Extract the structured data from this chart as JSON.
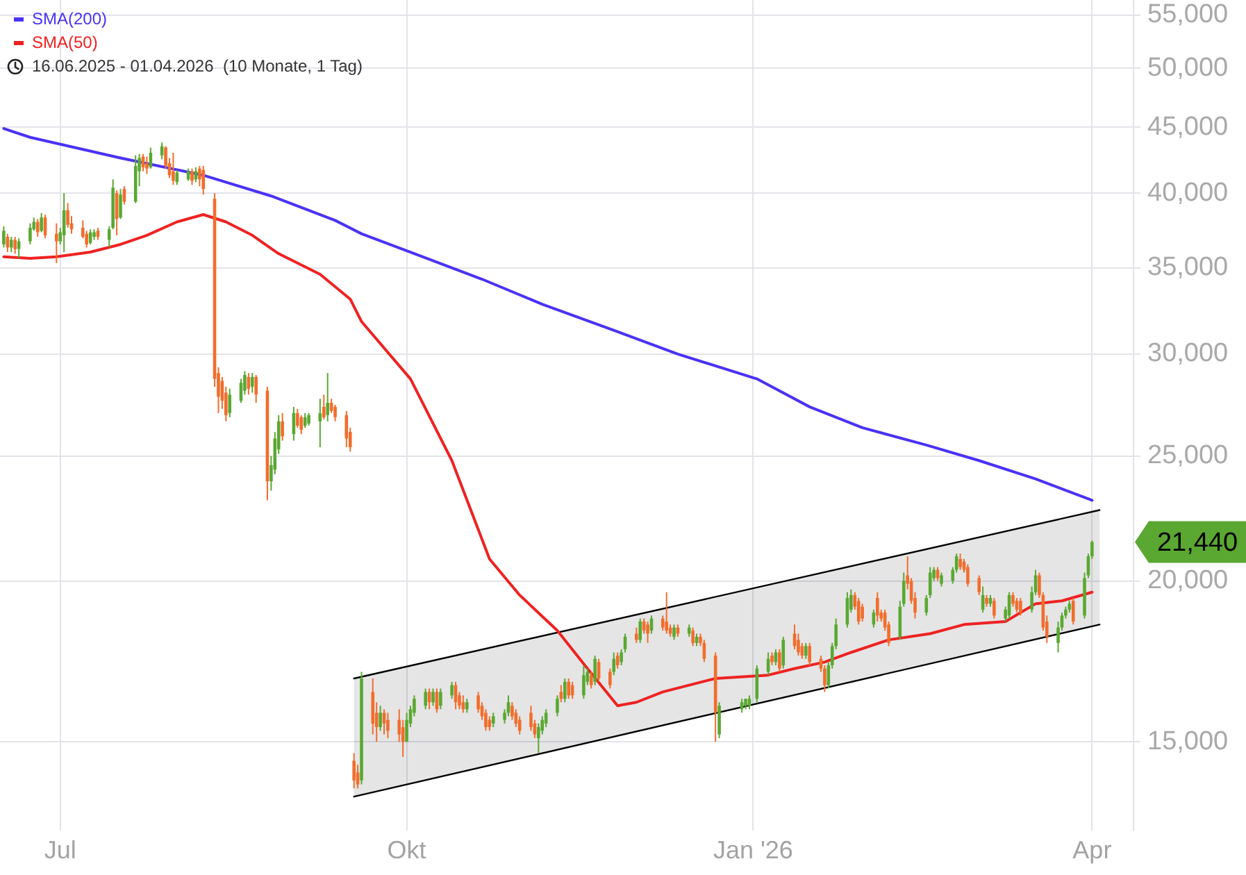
{
  "chart_data": {
    "type": "candlestick",
    "x": [
      "2025-06-16",
      "2025-06-17",
      "2025-06-18",
      "2025-06-19",
      "2025-06-20",
      "2025-06-23",
      "2025-06-24",
      "2025-06-25",
      "2025-06-26",
      "2025-06-27",
      "2025-06-30",
      "2025-07-01",
      "2025-07-02",
      "2025-07-03",
      "2025-07-04",
      "2025-07-07",
      "2025-07-08",
      "2025-07-09",
      "2025-07-10",
      "2025-07-11",
      "2025-07-14",
      "2025-07-15",
      "2025-07-16",
      "2025-07-17",
      "2025-07-18",
      "2025-07-21",
      "2025-07-22",
      "2025-07-23",
      "2025-07-24",
      "2025-07-25",
      "2025-07-28",
      "2025-07-29",
      "2025-07-30",
      "2025-07-31",
      "2025-08-01",
      "2025-08-04",
      "2025-08-05",
      "2025-08-06",
      "2025-08-07",
      "2025-08-08",
      "2025-08-11",
      "2025-08-12",
      "2025-08-13",
      "2025-08-14",
      "2025-08-15",
      "2025-08-18",
      "2025-08-19",
      "2025-08-20",
      "2025-08-21",
      "2025-08-22",
      "2025-08-25",
      "2025-08-26",
      "2025-08-27",
      "2025-08-28",
      "2025-08-29",
      "2025-09-01",
      "2025-09-02",
      "2025-09-03",
      "2025-09-04",
      "2025-09-05",
      "2025-09-08",
      "2025-09-09",
      "2025-09-10",
      "2025-09-11",
      "2025-09-12",
      "2025-09-15",
      "2025-09-16",
      "2025-09-17",
      "2025-09-18",
      "2025-09-19",
      "2025-09-22",
      "2025-09-23",
      "2025-09-24",
      "2025-09-25",
      "2025-09-26",
      "2025-09-29",
      "2025-09-30",
      "2025-10-01",
      "2025-10-02",
      "2025-10-03",
      "2025-10-06",
      "2025-10-07",
      "2025-10-08",
      "2025-10-09",
      "2025-10-10",
      "2025-10-13",
      "2025-10-14",
      "2025-10-15",
      "2025-10-16",
      "2025-10-17",
      "2025-10-20",
      "2025-10-21",
      "2025-10-22",
      "2025-10-23",
      "2025-10-24",
      "2025-10-27",
      "2025-10-28",
      "2025-10-29",
      "2025-10-30",
      "2025-10-31",
      "2025-11-03",
      "2025-11-04",
      "2025-11-05",
      "2025-11-06",
      "2025-11-07",
      "2025-11-10",
      "2025-11-11",
      "2025-11-12",
      "2025-11-13",
      "2025-11-14",
      "2025-11-17",
      "2025-11-18",
      "2025-11-19",
      "2025-11-20",
      "2025-11-21",
      "2025-11-24",
      "2025-11-25",
      "2025-11-26",
      "2025-11-27",
      "2025-11-28",
      "2025-12-01",
      "2025-12-02",
      "2025-12-03",
      "2025-12-04",
      "2025-12-05",
      "2025-12-08",
      "2025-12-09",
      "2025-12-10",
      "2025-12-11",
      "2025-12-12",
      "2025-12-15",
      "2025-12-16",
      "2025-12-17",
      "2025-12-18",
      "2025-12-19",
      "2025-12-22",
      "2025-12-23",
      "2025-12-29",
      "2025-12-30",
      "2025-12-31",
      "2026-01-02",
      "2026-01-05",
      "2026-01-06",
      "2026-01-07",
      "2026-01-08",
      "2026-01-09",
      "2026-01-12",
      "2026-01-13",
      "2026-01-14",
      "2026-01-15",
      "2026-01-16",
      "2026-01-19",
      "2026-01-20",
      "2026-01-21",
      "2026-01-22",
      "2026-01-23",
      "2026-01-26",
      "2026-01-27",
      "2026-01-28",
      "2026-01-29",
      "2026-01-30",
      "2026-02-02",
      "2026-02-03",
      "2026-02-04",
      "2026-02-05",
      "2026-02-06",
      "2026-02-09",
      "2026-02-10",
      "2026-02-11",
      "2026-02-12",
      "2026-02-13",
      "2026-02-16",
      "2026-02-17",
      "2026-02-18",
      "2026-02-19",
      "2026-02-20",
      "2026-02-23",
      "2026-02-24",
      "2026-02-25",
      "2026-02-26",
      "2026-02-27",
      "2026-03-02",
      "2026-03-03",
      "2026-03-04",
      "2026-03-05",
      "2026-03-06",
      "2026-03-09",
      "2026-03-10",
      "2026-03-11",
      "2026-03-12",
      "2026-03-13",
      "2026-03-16",
      "2026-03-17",
      "2026-03-18",
      "2026-03-19",
      "2026-03-20",
      "2026-03-23",
      "2026-03-24",
      "2026-03-25",
      "2026-03-26",
      "2026-03-27",
      "2026-03-30",
      "2026-03-31",
      "2026-04-01"
    ],
    "ohlc": [
      [
        36500,
        37700,
        36300,
        37400
      ],
      [
        37000,
        37200,
        36000,
        36300
      ],
      [
        36300,
        37000,
        36000,
        36800
      ],
      [
        36800,
        37000,
        35900,
        36200
      ],
      [
        36200,
        36900,
        35600,
        36700
      ],
      [
        36700,
        37900,
        36500,
        37600
      ],
      [
        37500,
        38300,
        37400,
        38000
      ],
      [
        38000,
        38200,
        37000,
        37300
      ],
      [
        37400,
        38600,
        37300,
        38300
      ],
      [
        38300,
        38500,
        36900,
        37100
      ],
      [
        37200,
        37900,
        35300,
        36700
      ],
      [
        36700,
        37600,
        36500,
        37300
      ],
      [
        37100,
        40000,
        36000,
        38800
      ],
      [
        38800,
        39300,
        37600,
        37800
      ],
      [
        37900,
        38400,
        37200,
        37500
      ],
      [
        37600,
        38100,
        36900,
        37000
      ],
      [
        37200,
        37400,
        36300,
        36500
      ],
      [
        36600,
        37500,
        36500,
        37300
      ],
      [
        37000,
        37500,
        36800,
        37300
      ],
      [
        37400,
        37600,
        36800,
        37000
      ],
      [
        36800,
        37700,
        36300,
        37500
      ],
      [
        37600,
        41000,
        37500,
        40400
      ],
      [
        40000,
        40200,
        37100,
        38200
      ],
      [
        38300,
        40300,
        38200,
        39900
      ],
      [
        40300,
        40500,
        39200,
        39400
      ],
      [
        39400,
        42800,
        39300,
        42000
      ],
      [
        41600,
        42900,
        40500,
        42600
      ],
      [
        42700,
        42900,
        41600,
        41900
      ],
      [
        42200,
        42700,
        41400,
        41800
      ],
      [
        41900,
        43400,
        41800,
        43000
      ],
      [
        42800,
        43800,
        42500,
        43500
      ],
      [
        43400,
        43500,
        41800,
        42000
      ],
      [
        42200,
        42600,
        41100,
        41300
      ],
      [
        41600,
        43000,
        40600,
        40900
      ],
      [
        40800,
        41700,
        40600,
        41500
      ],
      [
        41000,
        41800,
        40900,
        41600
      ],
      [
        41600,
        41800,
        40600,
        40900
      ],
      [
        41000,
        41900,
        40800,
        41600
      ],
      [
        41800,
        42000,
        40500,
        41000
      ],
      [
        41700,
        42000,
        39900,
        40300
      ],
      [
        39600,
        40000,
        28300,
        28700
      ],
      [
        29000,
        29300,
        27000,
        27800
      ],
      [
        28600,
        28800,
        27200,
        27600
      ],
      [
        28000,
        28300,
        26600,
        26900
      ],
      [
        27000,
        28200,
        26800,
        27900
      ],
      [
        27600,
        28700,
        27500,
        28500
      ],
      [
        28100,
        29100,
        27900,
        28900
      ],
      [
        28800,
        29000,
        27900,
        28200
      ],
      [
        28300,
        29000,
        28000,
        28800
      ],
      [
        28800,
        28900,
        27500,
        27900
      ],
      [
        28100,
        28300,
        23100,
        23900
      ],
      [
        23900,
        25000,
        23500,
        24600
      ],
      [
        24400,
        26100,
        24200,
        25800
      ],
      [
        25300,
        26900,
        25100,
        26600
      ],
      [
        26600,
        27000,
        25700,
        25900
      ],
      [
        26000,
        27300,
        25700,
        27000
      ],
      [
        27000,
        27200,
        26300,
        26400
      ],
      [
        26800,
        26900,
        26000,
        26200
      ],
      [
        26400,
        27000,
        26300,
        26800
      ],
      [
        26500,
        27000,
        26400,
        26900
      ],
      [
        26600,
        27700,
        25400,
        27000
      ],
      [
        27300,
        27900,
        26700,
        26800
      ],
      [
        26900,
        29000,
        26600,
        27500
      ],
      [
        27500,
        27700,
        27000,
        27100
      ],
      [
        27300,
        27400,
        26600,
        26800
      ],
      [
        26900,
        27100,
        25400,
        25800
      ],
      [
        26100,
        26300,
        25200,
        25400
      ],
      [
        14500,
        14700,
        13800,
        14000
      ],
      [
        14200,
        14400,
        13800,
        13900
      ],
      [
        14000,
        17000,
        13900,
        16800
      ],
      [
        16400,
        16800,
        15200,
        15500
      ],
      [
        15800,
        16100,
        15000,
        15400
      ],
      [
        15400,
        16000,
        15300,
        15800
      ],
      [
        15800,
        15900,
        15200,
        15500
      ],
      [
        15600,
        15800,
        15100,
        15300
      ],
      [
        15600,
        15900,
        15000,
        15200
      ],
      [
        15400,
        15600,
        14600,
        15000
      ],
      [
        15000,
        15800,
        15000,
        15600
      ],
      [
        15500,
        16000,
        15400,
        15900
      ],
      [
        15800,
        16300,
        15700,
        16200
      ],
      [
        16000,
        16500,
        15900,
        16400
      ],
      [
        16400,
        16500,
        15900,
        16100
      ],
      [
        16100,
        16500,
        16000,
        16400
      ],
      [
        16400,
        16500,
        15800,
        15900
      ],
      [
        16000,
        16500,
        15900,
        16400
      ],
      [
        16300,
        16700,
        16200,
        16600
      ],
      [
        16600,
        16700,
        15900,
        16100
      ],
      [
        16300,
        16400,
        15900,
        16000
      ],
      [
        16100,
        16300,
        15800,
        15900
      ],
      [
        15900,
        16200,
        15800,
        16100
      ],
      [
        16300,
        16400,
        15800,
        15900
      ],
      [
        16000,
        16100,
        15600,
        15700
      ],
      [
        15800,
        15900,
        15300,
        15400
      ],
      [
        15600,
        15700,
        15300,
        15400
      ],
      [
        15500,
        15800,
        15400,
        15700
      ],
      [
        15600,
        15900,
        15500,
        15800
      ],
      [
        15800,
        16300,
        15700,
        16100
      ],
      [
        16000,
        16100,
        15600,
        15700
      ],
      [
        15800,
        15900,
        15400,
        15500
      ],
      [
        15600,
        15700,
        15200,
        15300
      ],
      [
        15800,
        16000,
        15300,
        15400
      ],
      [
        15500,
        15600,
        15100,
        15200
      ],
      [
        15100,
        15500,
        14700,
        15400
      ],
      [
        15300,
        15700,
        15200,
        15600
      ],
      [
        15500,
        15900,
        15400,
        15800
      ],
      [
        15800,
        16300,
        15700,
        16200
      ],
      [
        16400,
        16600,
        16100,
        16200
      ],
      [
        16200,
        16800,
        16100,
        16700
      ],
      [
        16700,
        16800,
        16200,
        16300
      ],
      [
        16600,
        16700,
        16200,
        16300
      ],
      [
        16300,
        17200,
        16200,
        16900
      ],
      [
        16700,
        17100,
        16600,
        17000
      ],
      [
        16900,
        17000,
        16500,
        16600
      ],
      [
        16700,
        17500,
        16600,
        17400
      ],
      [
        17300,
        17400,
        16700,
        16800
      ],
      [
        17000,
        17100,
        16500,
        16600
      ],
      [
        17000,
        17600,
        16900,
        17400
      ],
      [
        17500,
        17600,
        17100,
        17200
      ],
      [
        17300,
        17700,
        17200,
        17600
      ],
      [
        17700,
        18200,
        17600,
        18100
      ],
      [
        18200,
        18400,
        17900,
        18000
      ],
      [
        18000,
        18700,
        17900,
        18600
      ],
      [
        18600,
        18700,
        18200,
        18300
      ],
      [
        18500,
        18600,
        17900,
        18200
      ],
      [
        18300,
        18800,
        18200,
        18700
      ],
      [
        18700,
        18800,
        18300,
        18400
      ],
      [
        18600,
        19600,
        18200,
        18300
      ],
      [
        18400,
        18500,
        18100,
        18200
      ],
      [
        18100,
        18500,
        18000,
        18400
      ],
      [
        18400,
        18500,
        18100,
        18200
      ],
      [
        18200,
        18500,
        18100,
        18400
      ],
      [
        18300,
        18400,
        17800,
        17900
      ],
      [
        17900,
        18200,
        17800,
        18100
      ],
      [
        18100,
        18200,
        17800,
        17900
      ],
      [
        17900,
        18000,
        17300,
        17400
      ],
      [
        17500,
        17600,
        15000,
        15800
      ],
      [
        15200,
        16100,
        15100,
        16000
      ],
      [
        15900,
        16200,
        15800,
        16100
      ],
      [
        16000,
        16200,
        15900,
        16200
      ],
      [
        16000,
        16300,
        15900,
        16200
      ],
      [
        16200,
        17200,
        16100,
        17100
      ],
      [
        17000,
        17600,
        16900,
        17400
      ],
      [
        17500,
        17600,
        17200,
        17300
      ],
      [
        17300,
        17700,
        17200,
        17600
      ],
      [
        17600,
        17700,
        17000,
        17100
      ],
      [
        17200,
        18100,
        17100,
        18000
      ],
      [
        18200,
        18500,
        17700,
        17800
      ],
      [
        18000,
        18200,
        17500,
        17600
      ],
      [
        17800,
        17900,
        17400,
        17500
      ],
      [
        17500,
        17900,
        17400,
        17800
      ],
      [
        17800,
        17900,
        17200,
        17300
      ],
      [
        17400,
        17500,
        17000,
        17100
      ],
      [
        17100,
        17200,
        16400,
        16600
      ],
      [
        16600,
        17300,
        16500,
        17200
      ],
      [
        17200,
        17900,
        17100,
        17800
      ],
      [
        17800,
        18700,
        17700,
        18500
      ],
      [
        18500,
        19600,
        18400,
        19400
      ],
      [
        19000,
        19700,
        18900,
        19500
      ],
      [
        19500,
        19600,
        19000,
        19100
      ],
      [
        19300,
        19400,
        18500,
        18600
      ],
      [
        19100,
        19200,
        18600,
        18700
      ],
      [
        18500,
        19000,
        18400,
        18900
      ],
      [
        19400,
        19600,
        18600,
        18800
      ],
      [
        18900,
        19000,
        18600,
        18700
      ],
      [
        18900,
        19000,
        18300,
        18400
      ],
      [
        18500,
        18600,
        17800,
        17900
      ],
      [
        18100,
        19300,
        18000,
        19100
      ],
      [
        19200,
        20300,
        19100,
        20000
      ],
      [
        20200,
        20900,
        19700,
        19900
      ],
      [
        20000,
        20100,
        19200,
        19300
      ],
      [
        19400,
        19600,
        18700,
        18900
      ],
      [
        18900,
        19500,
        18800,
        19400
      ],
      [
        19500,
        20500,
        19400,
        20300
      ],
      [
        20100,
        20500,
        20000,
        20400
      ],
      [
        20400,
        20500,
        20000,
        20100
      ],
      [
        19900,
        20300,
        19800,
        20200
      ],
      [
        20000,
        20500,
        19900,
        20400
      ],
      [
        20400,
        21000,
        20300,
        20900
      ],
      [
        20800,
        21000,
        20400,
        20500
      ],
      [
        20700,
        20800,
        20300,
        20400
      ],
      [
        20500,
        20600,
        19800,
        19900
      ],
      [
        20100,
        20200,
        19500,
        19600
      ],
      [
        19000,
        19800,
        18900,
        19500
      ],
      [
        19400,
        19500,
        19100,
        19200
      ],
      [
        19200,
        19500,
        19100,
        19400
      ],
      [
        19300,
        19400,
        18700,
        18800
      ],
      [
        18700,
        19100,
        18600,
        19000
      ],
      [
        18800,
        19600,
        18700,
        19500
      ],
      [
        19500,
        19600,
        19100,
        19200
      ],
      [
        19300,
        19400,
        18900,
        19000
      ],
      [
        19300,
        19400,
        18800,
        18900
      ],
      [
        19000,
        19800,
        18900,
        19600
      ],
      [
        19600,
        20400,
        19500,
        20200
      ],
      [
        20200,
        20300,
        19400,
        19500
      ],
      [
        19500,
        19600,
        18300,
        18400
      ],
      [
        18600,
        18800,
        17900,
        18100
      ],
      [
        17900,
        18600,
        17600,
        18400
      ],
      [
        18400,
        18900,
        18300,
        18800
      ],
      [
        18800,
        19100,
        18700,
        19000
      ],
      [
        19000,
        19300,
        18900,
        19200
      ],
      [
        19300,
        19400,
        18500,
        18600
      ],
      [
        18800,
        20300,
        18700,
        20100
      ],
      [
        20200,
        21000,
        20100,
        20900
      ],
      [
        20900,
        21500,
        20800,
        21440
      ]
    ],
    "colors": [
      "#5aa832",
      "#f26d2c",
      "#5aa832",
      "#f26d2c",
      "#5aa832",
      "#5aa832",
      "#5aa832",
      "#f26d2c",
      "#5aa832",
      "#f26d2c",
      "#f26d2c",
      "#5aa832",
      "#5aa832",
      "#f26d2c",
      "#f26d2c",
      "#f26d2c",
      "#f26d2c",
      "#5aa832",
      "#5aa832",
      "#f26d2c",
      "#5aa832",
      "#5aa832",
      "#f26d2c",
      "#5aa832",
      "#f26d2c",
      "#5aa832",
      "#5aa832",
      "#f26d2c",
      "#f26d2c",
      "#5aa832",
      "#5aa832",
      "#f26d2c",
      "#f26d2c",
      "#f26d2c",
      "#5aa832",
      "#5aa832",
      "#f26d2c",
      "#5aa832",
      "#f26d2c",
      "#f26d2c",
      "#f26d2c",
      "#f26d2c",
      "#f26d2c",
      "#f26d2c",
      "#5aa832",
      "#5aa832",
      "#5aa832",
      "#f26d2c",
      "#5aa832",
      "#f26d2c",
      "#f26d2c",
      "#5aa832",
      "#5aa832",
      "#5aa832",
      "#f26d2c",
      "#5aa832",
      "#f26d2c",
      "#f26d2c",
      "#5aa832",
      "#5aa832",
      "#5aa832",
      "#f26d2c",
      "#5aa832",
      "#f26d2c",
      "#f26d2c",
      "#f26d2c",
      "#f26d2c",
      "#f26d2c",
      "#f26d2c",
      "#5aa832",
      "#f26d2c",
      "#f26d2c",
      "#5aa832",
      "#f26d2c",
      "#f26d2c",
      "#f26d2c",
      "#f26d2c",
      "#5aa832",
      "#5aa832",
      "#5aa832",
      "#5aa832",
      "#f26d2c",
      "#5aa832",
      "#f26d2c",
      "#5aa832",
      "#5aa832",
      "#f26d2c",
      "#f26d2c",
      "#f26d2c",
      "#5aa832",
      "#f26d2c",
      "#f26d2c",
      "#f26d2c",
      "#f26d2c",
      "#5aa832",
      "#5aa832",
      "#5aa832",
      "#f26d2c",
      "#f26d2c",
      "#f26d2c",
      "#f26d2c",
      "#f26d2c",
      "#5aa832",
      "#5aa832",
      "#5aa832",
      "#5aa832",
      "#f26d2c",
      "#5aa832",
      "#f26d2c",
      "#f26d2c",
      "#5aa832",
      "#5aa832",
      "#f26d2c",
      "#5aa832",
      "#f26d2c",
      "#f26d2c",
      "#5aa832",
      "#f26d2c",
      "#5aa832",
      "#5aa832",
      "#f26d2c",
      "#5aa832",
      "#f26d2c",
      "#f26d2c",
      "#5aa832",
      "#f26d2c",
      "#f26d2c",
      "#f26d2c",
      "#5aa832",
      "#f26d2c",
      "#5aa832",
      "#f26d2c",
      "#5aa832",
      "#f26d2c",
      "#f26d2c",
      "#f26d2c",
      "#5aa832",
      "#5aa832",
      "#5aa832",
      "#5aa832",
      "#5aa832",
      "#5aa832",
      "#f26d2c",
      "#5aa832",
      "#f26d2c",
      "#5aa832",
      "#f26d2c",
      "#f26d2c",
      "#f26d2c",
      "#5aa832",
      "#f26d2c",
      "#f26d2c",
      "#f26d2c",
      "#5aa832",
      "#5aa832",
      "#5aa832",
      "#5aa832",
      "#5aa832",
      "#f26d2c",
      "#f26d2c",
      "#f26d2c",
      "#5aa832",
      "#f26d2c",
      "#f26d2c",
      "#f26d2c",
      "#f26d2c",
      "#5aa832",
      "#5aa832",
      "#f26d2c",
      "#f26d2c",
      "#f26d2c",
      "#5aa832",
      "#5aa832",
      "#5aa832",
      "#f26d2c",
      "#5aa832",
      "#5aa832",
      "#5aa832",
      "#f26d2c",
      "#f26d2c",
      "#f26d2c",
      "#f26d2c",
      "#5aa832",
      "#f26d2c",
      "#5aa832",
      "#f26d2c",
      "#5aa832",
      "#5aa832",
      "#f26d2c",
      "#f26d2c",
      "#f26d2c",
      "#5aa832",
      "#5aa832",
      "#f26d2c",
      "#f26d2c",
      "#f26d2c",
      "#5aa832",
      "#5aa832",
      "#5aa832",
      "#5aa832",
      "#f26d2c",
      "#5aa832",
      "#5aa832",
      "#5aa832"
    ],
    "series": [
      {
        "name": "SMA(200)",
        "type": "line",
        "color": "#4a32f5",
        "x": [
          "2025-06-16",
          "2025-06-23",
          "2025-07-17",
          "2025-08-08",
          "2025-08-26",
          "2025-09-12",
          "2025-09-19",
          "2025-10-02",
          "2025-10-21",
          "2025-11-06",
          "2025-11-25",
          "2025-12-12",
          "2026-01-02",
          "2026-01-16",
          "2026-01-30",
          "2026-02-16",
          "2026-03-02",
          "2026-03-17",
          "2026-04-01"
        ],
        "values": [
          44900,
          44200,
          42600,
          41300,
          39800,
          38100,
          37200,
          36000,
          34300,
          32800,
          31300,
          30000,
          28700,
          27300,
          26300,
          25500,
          24800,
          24000,
          23100
        ]
      },
      {
        "name": "SMA(50)",
        "type": "line",
        "color": "#ee2222",
        "x": [
          "2025-06-16",
          "2025-06-23",
          "2025-06-30",
          "2025-07-09",
          "2025-07-17",
          "2025-07-24",
          "2025-08-01",
          "2025-08-08",
          "2025-08-14",
          "2025-08-21",
          "2025-08-28",
          "2025-09-08",
          "2025-09-16",
          "2025-09-19",
          "2025-10-02",
          "2025-10-13",
          "2025-10-23",
          "2025-10-31",
          "2025-11-10",
          "2025-11-18",
          "2025-11-26",
          "2025-12-01",
          "2025-12-08",
          "2025-12-15",
          "2025-12-22",
          "2026-01-05",
          "2026-01-12",
          "2026-01-20",
          "2026-01-27",
          "2026-02-06",
          "2026-02-17",
          "2026-02-26",
          "2026-03-09",
          "2026-03-17",
          "2026-03-24",
          "2026-04-01"
        ],
        "values": [
          35700,
          35600,
          35700,
          36000,
          36500,
          37100,
          38000,
          38500,
          38000,
          37100,
          35900,
          34600,
          33100,
          31800,
          28700,
          24800,
          20800,
          19500,
          18300,
          17100,
          16000,
          16100,
          16400,
          16600,
          16800,
          16900,
          17100,
          17300,
          17600,
          18000,
          18200,
          18500,
          18600,
          19200,
          19300,
          19600
        ]
      },
      {
        "type": "line",
        "color": "#000000",
        "x": [
          "2025-09-17",
          "2026-04-03"
        ],
        "values": [
          16800,
          22700
        ],
        "lower": [
          13600,
          18500
        ],
        "upper": [
          16800,
          22700
        ]
      },
      {
        "type": "line",
        "color": "#000000",
        "x": [
          "2025-09-17",
          "2026-04-03"
        ],
        "values": [
          13600,
          18500
        ]
      }
    ],
    "xlim": [
      "2025-06-15",
      "2026-04-12"
    ],
    "xticks": [
      {
        "value": "2025-07-01",
        "label": "Jul"
      },
      {
        "value": "2025-10-01",
        "label": "Okt"
      },
      {
        "value": "2026-01-01",
        "label": "Jan '26"
      },
      {
        "value": "2026-04-01",
        "label": "Apr"
      }
    ],
    "ylim": [
      12800,
      56500
    ],
    "yticks": [
      {
        "value": 15000,
        "label": "15,000"
      },
      {
        "value": 20000,
        "label": "20,000"
      },
      {
        "value": 25000,
        "label": "25,000"
      },
      {
        "value": 30000,
        "label": "30,000"
      },
      {
        "value": 35000,
        "label": "35,000"
      },
      {
        "value": 40000,
        "label": "40,000"
      },
      {
        "value": 45000,
        "label": "45,000"
      },
      {
        "value": 50000,
        "label": "50,000"
      },
      {
        "value": 55000,
        "label": "55,000"
      }
    ],
    "log": "y",
    "grid": true,
    "legend": "top left",
    "annotations": [
      "16.06.2025 - 01.04.2026  (10 Monate, 1 Tag)",
      {
        "text": "21,440",
        "x": "2026-04-01",
        "y": 21440
      }
    ]
  }
}
